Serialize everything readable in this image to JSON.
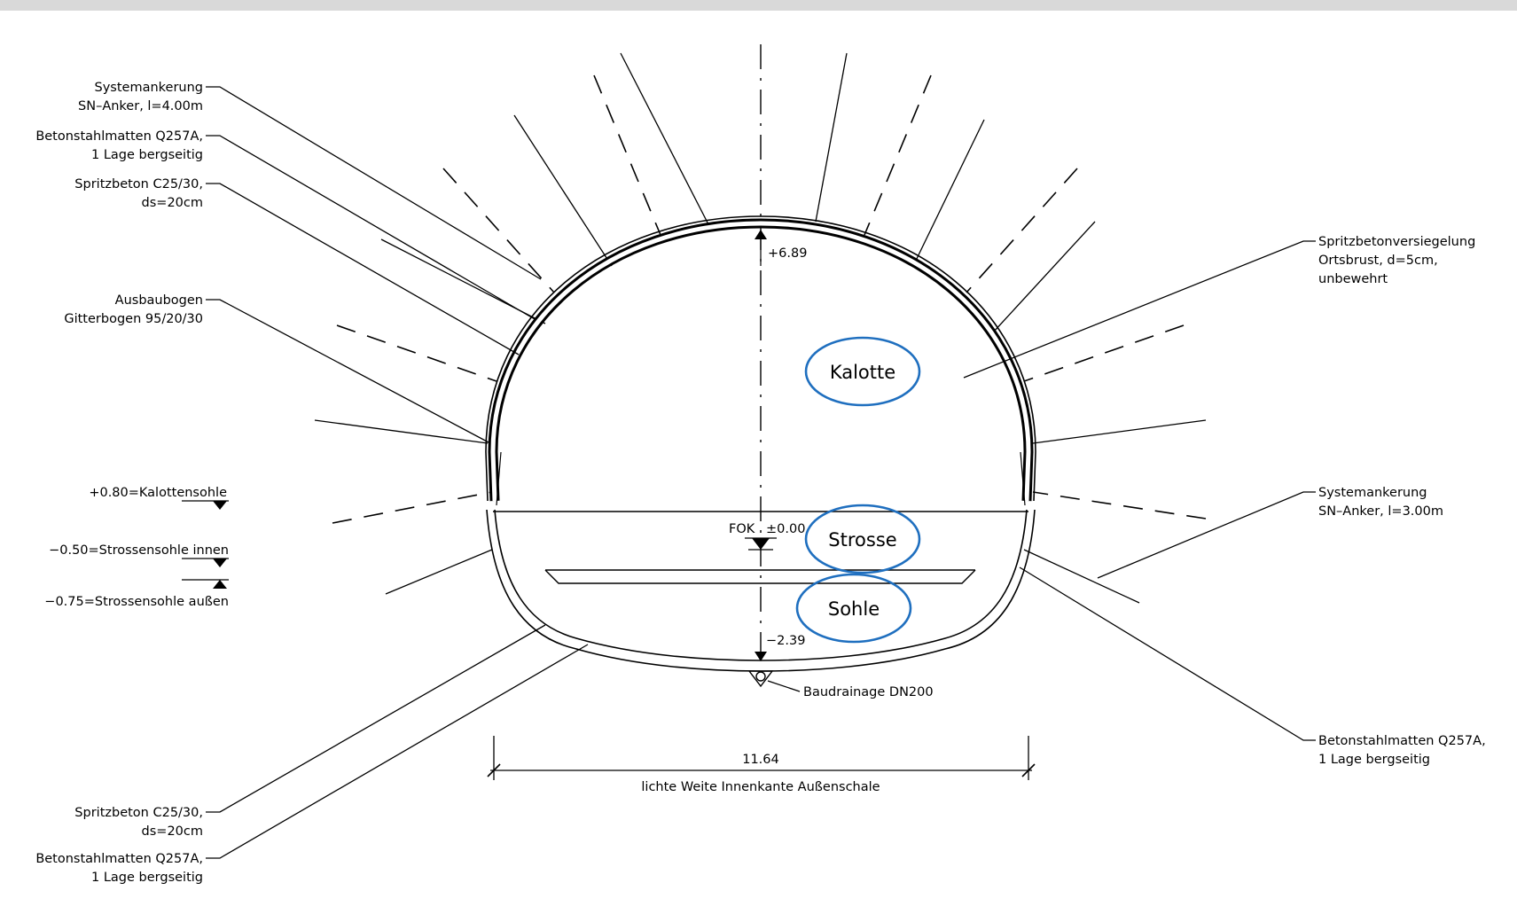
{
  "labels_left": {
    "systemankerung_top": [
      "Systemankerung",
      "SN–Anker, l=4.00m"
    ],
    "betonstahlmatten_top": [
      "Betonstahlmatten Q257A,",
      "1 Lage bergseitig"
    ],
    "spritzbeton_top": [
      "Spritzbeton C25/30,",
      "ds=20cm"
    ],
    "ausbaubogen": [
      "Ausbaubogen",
      "Gitterbogen 95/20/30"
    ],
    "kalottensohle": "+0.80=Kalottensohle",
    "strossensohle_innen": "−0.50=Strossensohle innen",
    "strossensohle_aussen": "−0.75=Strossensohle außen",
    "spritzbeton_bottom": [
      "Spritzbeton C25/30,",
      "ds=20cm"
    ],
    "betonstahlmatten_bottom": [
      "Betonstahlmatten Q257A,",
      "1 Lage bergseitig"
    ]
  },
  "labels_right": {
    "spritzbetonversiegelung": [
      "Spritzbetonversiegelung",
      "Ortsbrust, d=5cm,",
      "unbewehrt"
    ],
    "systemankerung": [
      "Systemankerung",
      "SN–Anker, l=3.00m"
    ],
    "betonstahlmatten": [
      "Betonstahlmatten Q257A,",
      "1 Lage bergseitig"
    ]
  },
  "levels": {
    "crown": "+6.89",
    "fok": "FOK",
    "fok_value": "±0.00",
    "invert": "−2.39"
  },
  "drainage": "Baudrainage DN200",
  "dimension": {
    "value": "11.64",
    "label": "lichte Weite Innenkante Außenschale"
  },
  "sections": {
    "kalotte": "Kalotte",
    "strosse": "Strosse",
    "sohle": "Sohle"
  },
  "colors": {
    "highlight": "#1f6fbf",
    "top_bar": "#d9d9d9"
  }
}
